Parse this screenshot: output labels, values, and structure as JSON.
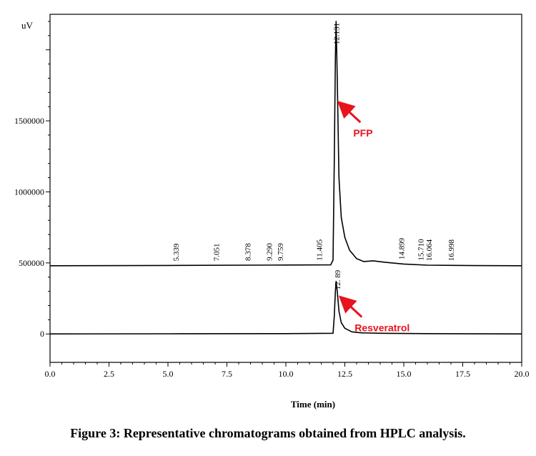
{
  "caption": "Figure 3: Representative chromatograms obtained from HPLC analysis.",
  "chart_data": {
    "type": "line",
    "ylabel": "uV",
    "xlabel": "Time (min)",
    "xlim": [
      0.0,
      20.0
    ],
    "ylim": [
      -200000,
      2250000
    ],
    "x_ticks": [
      {
        "value": 0.0,
        "label": "0.0"
      },
      {
        "value": 2.5,
        "label": "2.5"
      },
      {
        "value": 5.0,
        "label": "5.0"
      },
      {
        "value": 7.5,
        "label": "7.5"
      },
      {
        "value": 10.0,
        "label": "10.0"
      },
      {
        "value": 12.5,
        "label": "12.5"
      },
      {
        "value": 15.0,
        "label": "15.0"
      },
      {
        "value": 17.5,
        "label": "17.5"
      },
      {
        "value": 20.0,
        "label": "20.0"
      }
    ],
    "y_ticks": [
      {
        "value": 0,
        "label": "0"
      },
      {
        "value": 500000,
        "label": "500000"
      },
      {
        "value": 1000000,
        "label": "1000000"
      },
      {
        "value": 1500000,
        "label": "1500000"
      }
    ],
    "series": [
      {
        "x": [
          0.0,
          5.0,
          10.0,
          11.9,
          12.0,
          12.05,
          12.1,
          12.131,
          12.18,
          12.25,
          12.35,
          12.5,
          12.7,
          13.0,
          13.3,
          13.7,
          14.2,
          15.0,
          16.0,
          18.0,
          20.0
        ],
        "y": [
          480000,
          482000,
          485000,
          486000,
          520000,
          1200000,
          1950000,
          2200000,
          1800000,
          1100000,
          820000,
          680000,
          590000,
          530000,
          510000,
          515000,
          505000,
          492000,
          484000,
          481000,
          480000
        ],
        "peaks": [
          {
            "rt": 5.339,
            "label": "5.339"
          },
          {
            "rt": 7.051,
            "label": "7.051"
          },
          {
            "rt": 8.378,
            "label": "8.378"
          },
          {
            "rt": 9.29,
            "label": "9.290"
          },
          {
            "rt": 9.759,
            "label": "9.759"
          },
          {
            "rt": 11.405,
            "label": "11.405"
          },
          {
            "rt": 12.131,
            "label": "12.131"
          },
          {
            "rt": 14.899,
            "label": "14.899"
          },
          {
            "rt": 15.71,
            "label": "15.710"
          },
          {
            "rt": 16.064,
            "label": "16.064"
          },
          {
            "rt": 16.998,
            "label": "16.998"
          }
        ]
      },
      {
        "x": [
          0.0,
          5.0,
          10.0,
          12.0,
          12.05,
          12.1,
          12.13,
          12.18,
          12.25,
          12.35,
          12.5,
          12.8,
          13.2,
          14.0,
          16.0,
          20.0
        ],
        "y": [
          0,
          1000,
          2000,
          5000,
          120000,
          300000,
          370000,
          300000,
          160000,
          80000,
          40000,
          15000,
          8000,
          5000,
          2000,
          0
        ],
        "peaks": [
          {
            "rt": 12.189,
            "label": "12. 89"
          }
        ]
      }
    ],
    "annotations": [
      {
        "text": "PFP",
        "x": 12.131,
        "y": 1550000,
        "color": "#e8141c"
      },
      {
        "text": "Resveratrol",
        "x": 12.189,
        "y": 180000,
        "color": "#e8141c"
      }
    ]
  }
}
